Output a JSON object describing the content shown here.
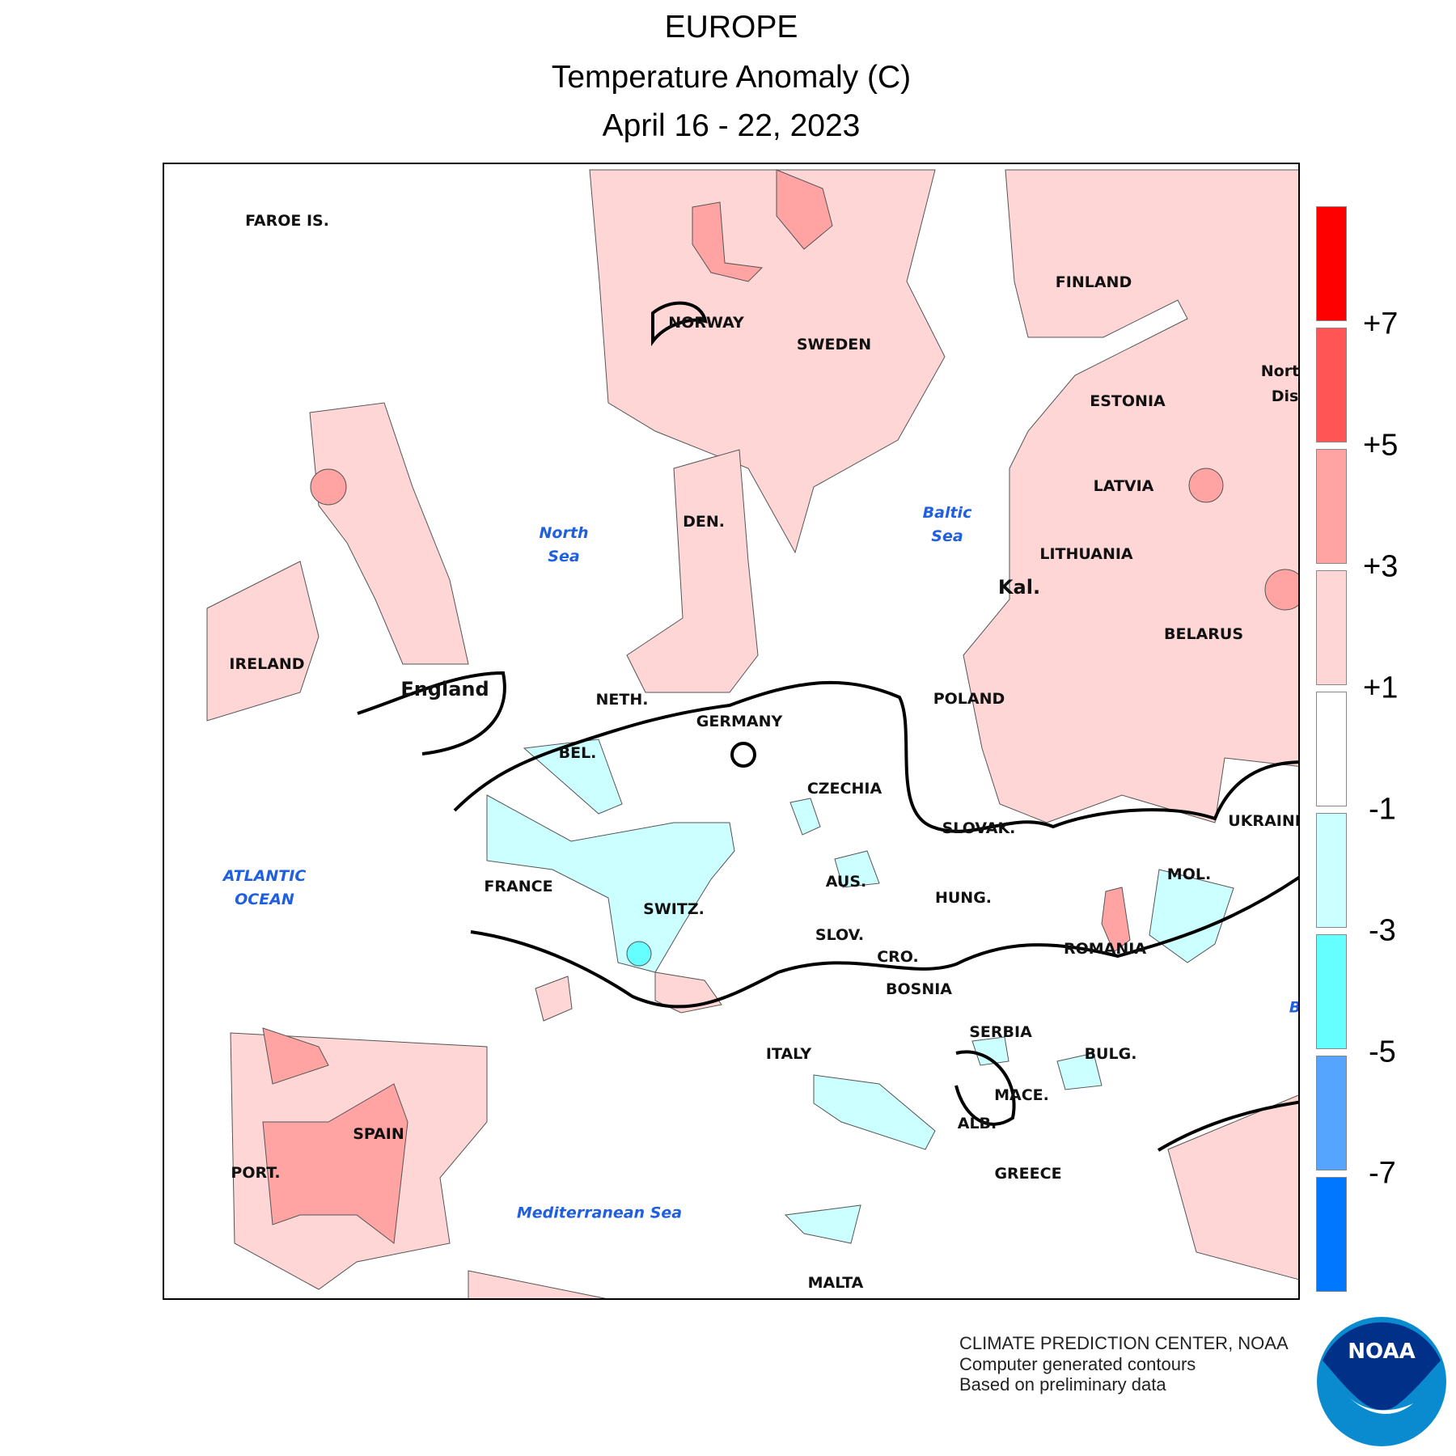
{
  "header": {
    "region": "EUROPE",
    "variable": "Temperature Anomaly (C)",
    "period": "April 16 - 22, 2023"
  },
  "legend": {
    "colors": [
      "#ff0000",
      "#ff5555",
      "#ffa3a3",
      "#ffd6d6",
      "#ffffff",
      "#ccffff",
      "#66ffff",
      "#55a5ff",
      "#0077ff"
    ],
    "labels": [
      "+7",
      "+5",
      "+3",
      "+1",
      "-1",
      "-3",
      "-5",
      "-7"
    ]
  },
  "map": {
    "labels": [
      "FAROE IS.",
      "NORWAY",
      "SWEDEN",
      "FINLAND",
      "ESTONIA",
      "LATVIA",
      "LITHUANIA",
      "Kal.",
      "BELARUS",
      "POLAND",
      "DEN.",
      "IRELAND",
      "England",
      "NETH.",
      "GERMANY",
      "BEL.",
      "CZECHIA",
      "SLOVAK.",
      "UKRAINE",
      "FRANCE",
      "SWITZ.",
      "AUS.",
      "HUNG.",
      "MOL.",
      "ROMANIA",
      "SLOV.",
      "CRO.",
      "BOSNIA",
      "SERBIA",
      "ITALY",
      "BULG.",
      "MACE.",
      "ALB.",
      "GREECE",
      "SPAIN",
      "PORT.",
      "MALTA",
      "Northw",
      "Distri"
    ],
    "seas": [
      {
        "line1": "North",
        "line2": "Sea"
      },
      {
        "line1": "Baltic",
        "line2": "Sea"
      },
      {
        "line1": "ATLANTIC",
        "line2": "OCEAN"
      },
      {
        "line1": "Mediterranean Sea",
        "line2": ""
      },
      {
        "line1": "B",
        "line2": ""
      }
    ]
  },
  "footer": {
    "line1": "CLIMATE PREDICTION CENTER, NOAA",
    "line2": "Computer generated contours",
    "line3": "Based on preliminary data",
    "logo_text": "NOAA"
  }
}
